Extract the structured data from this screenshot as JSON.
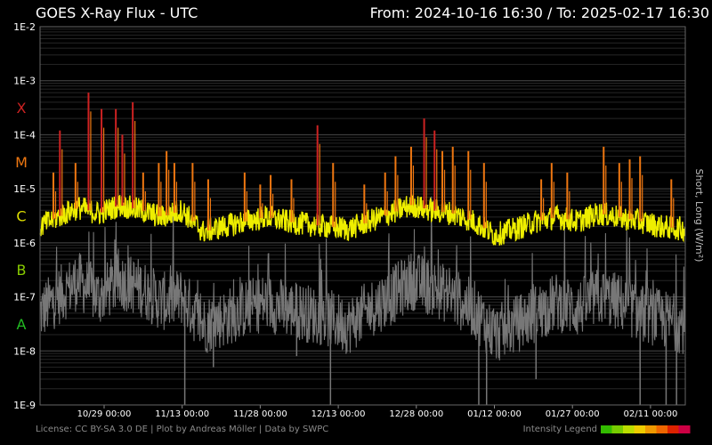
{
  "header": {
    "title": "GOES X-Ray Flux - UTC",
    "range": "From: 2024-10-16 16:30  /  To: 2025-02-17 16:30"
  },
  "footer": {
    "license": "License: CC BY-SA 3.0 DE | Plot by Andreas Möller | Data by SWPC",
    "legend_label": "Intensity Legend"
  },
  "legend_colors": [
    "#33bb00",
    "#77cc00",
    "#bbdd00",
    "#eecc00",
    "#ee9900",
    "#ee6600",
    "#dd2200",
    "#cc0044"
  ],
  "chart_data": {
    "type": "line",
    "title": "GOES X-Ray Flux - UTC",
    "ylabel": "Short, Long (W/m²)",
    "yscale": "log",
    "ylim": [
      1e-09,
      0.01
    ],
    "xlim": [
      "2024-10-16 16:30",
      "2025-02-17 16:30"
    ],
    "yticks": [
      "1E-2",
      "1E-3",
      "1E-4",
      "1E-5",
      "1E-6",
      "1E-7",
      "1E-8",
      "1E-9"
    ],
    "xticks": [
      {
        "label": "10/29 00:00",
        "date": "2024-10-29 00:00"
      },
      {
        "label": "11/13 00:00",
        "date": "2024-11-13 00:00"
      },
      {
        "label": "11/28 00:00",
        "date": "2024-11-28 00:00"
      },
      {
        "label": "12/13 00:00",
        "date": "2024-12-13 00:00"
      },
      {
        "label": "12/28 00:00",
        "date": "2024-12-28 00:00"
      },
      {
        "label": "01/12 00:00",
        "date": "2025-01-12 00:00"
      },
      {
        "label": "01/27 00:00",
        "date": "2025-01-27 00:00"
      },
      {
        "label": "02/11 00:00",
        "date": "2025-02-11 00:00"
      }
    ],
    "flare_classes": [
      {
        "label": "X",
        "color": "#cc2222",
        "decade": 0.0001
      },
      {
        "label": "M",
        "color": "#ee7711",
        "decade": 1e-05
      },
      {
        "label": "C",
        "color": "#dddd00",
        "decade": 1e-06
      },
      {
        "label": "B",
        "color": "#88cc00",
        "decade": 1e-07
      },
      {
        "label": "A",
        "color": "#22bb22",
        "decade": 1e-08
      }
    ],
    "grid": true,
    "series": [
      {
        "name": "Long",
        "color": "#eeee00",
        "points": [
          [
            "2024-10-16 16:30",
            2e-06
          ],
          [
            "2024-10-20 00:00",
            3e-06
          ],
          [
            "2024-10-24 00:00",
            4.5e-06
          ],
          [
            "2024-10-28 00:00",
            3.5e-06
          ],
          [
            "2024-11-01 00:00",
            5e-06
          ],
          [
            "2024-11-05 00:00",
            4e-06
          ],
          [
            "2024-11-09 00:00",
            3e-06
          ],
          [
            "2024-11-13 00:00",
            4e-06
          ],
          [
            "2024-11-17 00:00",
            1.6e-06
          ],
          [
            "2024-11-21 00:00",
            2e-06
          ],
          [
            "2024-11-25 00:00",
            2.5e-06
          ],
          [
            "2024-11-29 00:00",
            3e-06
          ],
          [
            "2024-12-03 00:00",
            2.5e-06
          ],
          [
            "2024-12-07 00:00",
            2.2e-06
          ],
          [
            "2024-12-11 00:00",
            2e-06
          ],
          [
            "2024-12-15 00:00",
            1.8e-06
          ],
          [
            "2024-12-19 00:00",
            2.5e-06
          ],
          [
            "2024-12-23 00:00",
            3.5e-06
          ],
          [
            "2024-12-27 00:00",
            5e-06
          ],
          [
            "2024-12-31 00:00",
            4e-06
          ],
          [
            "2025-01-04 00:00",
            3.5e-06
          ],
          [
            "2025-01-08 00:00",
            2.5e-06
          ],
          [
            "2025-01-12 00:00",
            1.4e-06
          ],
          [
            "2025-01-16 00:00",
            1.8e-06
          ],
          [
            "2025-01-20 00:00",
            2.5e-06
          ],
          [
            "2025-01-24 00:00",
            3e-06
          ],
          [
            "2025-01-28 00:00",
            2.5e-06
          ],
          [
            "2025-02-01 00:00",
            3.5e-06
          ],
          [
            "2025-02-05 00:00",
            3e-06
          ],
          [
            "2025-02-09 00:00",
            2.5e-06
          ],
          [
            "2025-02-13 00:00",
            2e-06
          ],
          [
            "2025-02-17 16:30",
            1.8e-06
          ]
        ]
      },
      {
        "name": "Short",
        "color": "#777777",
        "points": [
          [
            "2024-10-16 16:30",
            5e-08
          ],
          [
            "2024-10-20 00:00",
            1e-07
          ],
          [
            "2024-10-24 00:00",
            2e-07
          ],
          [
            "2024-10-28 00:00",
            1e-07
          ],
          [
            "2024-11-01 00:00",
            2e-07
          ],
          [
            "2024-11-05 00:00",
            1.5e-07
          ],
          [
            "2024-11-09 00:00",
            8e-08
          ],
          [
            "2024-11-13 00:00",
            1e-07
          ],
          [
            "2024-11-17 00:00",
            3e-08
          ],
          [
            "2024-11-21 00:00",
            4e-08
          ],
          [
            "2024-11-25 00:00",
            6e-08
          ],
          [
            "2024-11-29 00:00",
            8e-08
          ],
          [
            "2024-12-03 00:00",
            6e-08
          ],
          [
            "2024-12-07 00:00",
            5e-08
          ],
          [
            "2024-12-11 00:00",
            4e-08
          ],
          [
            "2024-12-15 00:00",
            3e-08
          ],
          [
            "2024-12-19 00:00",
            6e-08
          ],
          [
            "2024-12-23 00:00",
            1e-07
          ],
          [
            "2024-12-27 00:00",
            2e-07
          ],
          [
            "2024-12-31 00:00",
            1.5e-07
          ],
          [
            "2025-01-04 00:00",
            1e-07
          ],
          [
            "2025-01-08 00:00",
            6e-08
          ],
          [
            "2025-01-12 00:00",
            2e-08
          ],
          [
            "2025-01-16 00:00",
            3e-08
          ],
          [
            "2025-01-20 00:00",
            5e-08
          ],
          [
            "2025-01-24 00:00",
            8e-08
          ],
          [
            "2025-01-28 00:00",
            6e-08
          ],
          [
            "2025-02-01 00:00",
            1e-07
          ],
          [
            "2025-02-05 00:00",
            8e-08
          ],
          [
            "2025-02-09 00:00",
            5e-08
          ],
          [
            "2025-02-13 00:00",
            4e-08
          ],
          [
            "2025-02-17 16:30",
            3e-08
          ]
        ]
      }
    ],
    "flares": [
      [
        "2024-10-19 06:00",
        2e-05
      ],
      [
        "2024-10-20 12:00",
        0.00012
      ],
      [
        "2024-10-23 12:00",
        3e-05
      ],
      [
        "2024-10-26 00:00",
        0.0006
      ],
      [
        "2024-10-28 12:00",
        0.0003
      ],
      [
        "2024-10-31 06:00",
        0.0003
      ],
      [
        "2024-11-01 12:00",
        0.0001
      ],
      [
        "2024-11-03 12:00",
        0.0004
      ],
      [
        "2024-11-05 12:00",
        2e-05
      ],
      [
        "2024-11-08 12:00",
        3e-05
      ],
      [
        "2024-11-10 00:00",
        5e-05
      ],
      [
        "2024-11-11 12:00",
        3e-05
      ],
      [
        "2024-11-15 00:00",
        3e-05
      ],
      [
        "2024-11-18 00:00",
        1.5e-05
      ],
      [
        "2024-11-25 00:00",
        2e-05
      ],
      [
        "2024-11-28 00:00",
        1.2e-05
      ],
      [
        "2024-11-30 00:00",
        1.8e-05
      ],
      [
        "2024-12-04 00:00",
        1.5e-05
      ],
      [
        "2024-12-09 00:00",
        0.00015
      ],
      [
        "2024-12-12 00:00",
        3e-05
      ],
      [
        "2024-12-18 00:00",
        1.2e-05
      ],
      [
        "2024-12-22 00:00",
        2e-05
      ],
      [
        "2024-12-24 00:00",
        4e-05
      ],
      [
        "2024-12-27 00:00",
        6e-05
      ],
      [
        "2024-12-29 12:00",
        0.0002
      ],
      [
        "2024-12-31 12:00",
        0.00012
      ],
      [
        "2025-01-02 00:00",
        5e-05
      ],
      [
        "2025-01-04 00:00",
        6e-05
      ],
      [
        "2025-01-07 00:00",
        5e-05
      ],
      [
        "2025-01-10 00:00",
        3e-05
      ],
      [
        "2025-01-21 00:00",
        1.5e-05
      ],
      [
        "2025-01-23 00:00",
        3e-05
      ],
      [
        "2025-01-26 00:00",
        2e-05
      ],
      [
        "2025-02-02 00:00",
        6e-05
      ],
      [
        "2025-02-05 00:00",
        3e-05
      ],
      [
        "2025-02-07 00:00",
        3.5e-05
      ],
      [
        "2025-02-09 00:00",
        4e-05
      ],
      [
        "2025-02-15 00:00",
        1.5e-05
      ]
    ],
    "short_dips": [
      [
        "2024-11-13 12:00",
        1e-09
      ],
      [
        "2024-11-19 00:00",
        5e-09
      ],
      [
        "2024-12-05 00:00",
        8e-09
      ],
      [
        "2024-12-11 12:00",
        1e-09
      ],
      [
        "2025-01-09 00:00",
        1e-09
      ],
      [
        "2025-01-10 12:00",
        1e-09
      ],
      [
        "2025-01-20 00:00",
        3e-09
      ],
      [
        "2025-02-09 00:00",
        1e-09
      ],
      [
        "2025-02-14 00:00",
        1e-09
      ],
      [
        "2025-02-16 00:00",
        1e-09
      ]
    ]
  }
}
